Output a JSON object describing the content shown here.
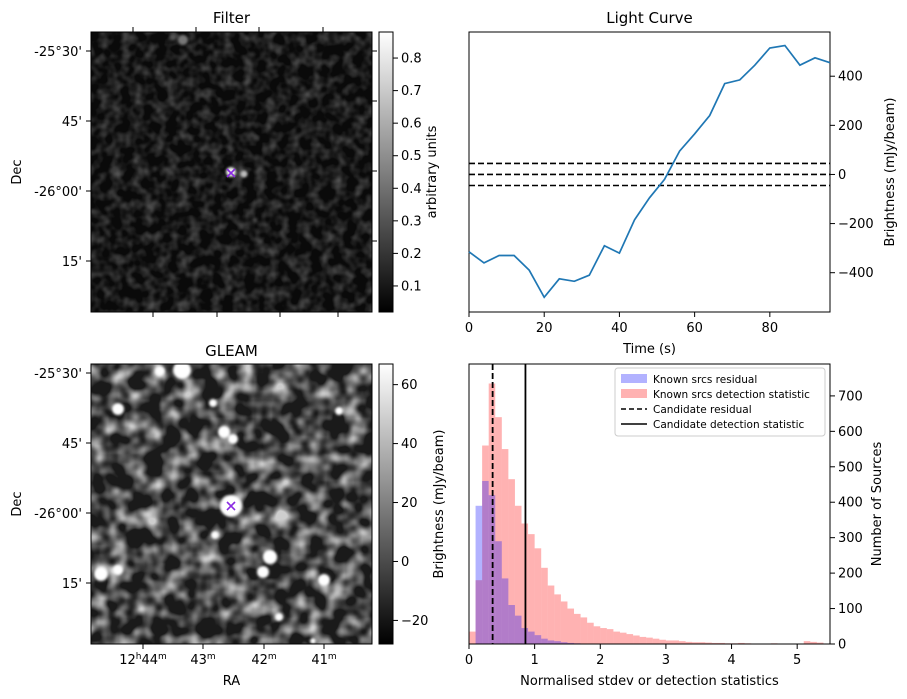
{
  "chart_data": [
    {
      "panel": "filter_image",
      "type": "heatmap",
      "title": "Filter",
      "ylabel": "Dec",
      "yticks": [
        "-25°30'",
        "45'",
        "-26°00'",
        "15'"
      ],
      "colorbar": {
        "label": "arbitrary units",
        "ticks": [
          "0.1",
          "0.2",
          "0.3",
          "0.4",
          "0.5",
          "0.6",
          "0.7",
          "0.8"
        ],
        "range": [
          0.02,
          0.88
        ],
        "colormap": "gray"
      },
      "marker": {
        "symbol": "x",
        "color": "#8a2be2"
      }
    },
    {
      "panel": "light_curve",
      "type": "line",
      "title": "Light Curve",
      "xlabel": "Time (s)",
      "ylabel": "Brightness (mJy/beam)",
      "xlim": [
        0,
        96
      ],
      "ylim": [
        -560,
        580
      ],
      "xticks": [
        0,
        20,
        40,
        60,
        80
      ],
      "yticks": [
        -400,
        -200,
        0,
        200,
        400
      ],
      "line_color": "#1f77b4",
      "x": [
        0,
        4,
        8,
        12,
        16,
        20,
        24,
        28,
        32,
        36,
        40,
        44,
        48,
        52,
        56,
        60,
        64,
        68,
        72,
        76,
        80,
        84,
        88,
        92,
        96
      ],
      "y": [
        -315,
        -360,
        -330,
        -330,
        -390,
        -500,
        -425,
        -435,
        -410,
        -290,
        -320,
        -185,
        -95,
        -20,
        95,
        165,
        240,
        370,
        385,
        445,
        515,
        525,
        445,
        475,
        455
      ],
      "hlines": [
        {
          "y": 45,
          "style": "dashed"
        },
        {
          "y": 0,
          "style": "dashed"
        },
        {
          "y": -45,
          "style": "dashed"
        }
      ]
    },
    {
      "panel": "gleam_image",
      "type": "heatmap",
      "title": "GLEAM",
      "xlabel": "RA",
      "ylabel": "Dec",
      "yticks": [
        "-25°30'",
        "45'",
        "-26°00'",
        "15'"
      ],
      "xticks": [
        "12h44m",
        "43m",
        "42m",
        "41m"
      ],
      "colorbar": {
        "ticks": [
          "−20",
          "0",
          "20",
          "40",
          "60"
        ],
        "range": [
          -28,
          67
        ],
        "label": "Brightness (mJy/beam)",
        "colormap": "gray"
      },
      "marker": {
        "symbol": "x",
        "color": "#8a2be2"
      }
    },
    {
      "panel": "histogram",
      "type": "bar",
      "xlabel": "Normalised stdev or detection statistics",
      "ylabel": "Number of Sources",
      "xlim": [
        0,
        5.5
      ],
      "ylim": [
        0,
        790
      ],
      "xticks": [
        0,
        1,
        2,
        3,
        4,
        5
      ],
      "yticks": [
        0,
        100,
        200,
        300,
        400,
        500,
        600,
        700
      ],
      "bin_width": 0.1,
      "series": [
        {
          "name": "Known srcs residual",
          "color": "#0000ff",
          "opacity": 0.3,
          "bins_start": 0.1,
          "values": [
            390,
            460,
            420,
            290,
            185,
            110,
            80,
            45,
            35,
            25,
            15,
            10,
            8,
            5,
            3,
            2
          ]
        },
        {
          "name": "Known srcs detection statistic",
          "color": "#ff0000",
          "opacity": 0.3,
          "bins_start": 0.0,
          "values": [
            35,
            180,
            560,
            735,
            640,
            550,
            465,
            390,
            340,
            310,
            270,
            215,
            165,
            140,
            120,
            100,
            85,
            75,
            60,
            50,
            45,
            42,
            35,
            32,
            28,
            24,
            20,
            18,
            15,
            12,
            10,
            10,
            8,
            6,
            5,
            5,
            4,
            3,
            3,
            2,
            2,
            3,
            2,
            1,
            1,
            1,
            2,
            1,
            1,
            1,
            1,
            8,
            6,
            4,
            1
          ]
        }
      ],
      "vlines": [
        {
          "name": "Candidate residual",
          "x": 0.36,
          "style": "dashed"
        },
        {
          "name": "Candidate detection statistic",
          "x": 0.86,
          "style": "solid"
        }
      ],
      "legend": "top-right"
    }
  ]
}
